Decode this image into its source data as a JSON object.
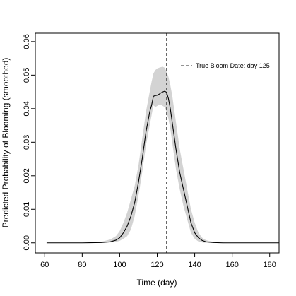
{
  "chart_data": {
    "type": "line",
    "title": "",
    "xlabel": "Time (day)",
    "ylabel": "Predicted Probability of Blooming (smoothed)",
    "xlim": [
      55,
      185
    ],
    "ylim": [
      -0.003,
      0.0625
    ],
    "xticks": [
      60,
      80,
      100,
      120,
      140,
      160,
      180
    ],
    "yticks": [
      0.0,
      0.01,
      0.02,
      0.03,
      0.04,
      0.05,
      0.06
    ],
    "ytick_labels": [
      "0.00",
      "0.01",
      "0.02",
      "0.03",
      "0.04",
      "0.05",
      "0.06"
    ],
    "grid": false,
    "legend_position": "top-right",
    "series": [
      {
        "x": [
          61,
          80,
          90,
          95,
          98,
          100,
          102,
          104,
          106,
          108,
          110,
          112,
          114,
          116,
          117,
          118,
          119,
          120,
          121,
          122,
          123,
          124,
          125,
          126,
          127,
          128,
          130,
          132,
          134,
          136,
          138,
          140,
          142,
          144,
          146,
          150,
          155,
          160,
          170,
          185
        ],
        "values": [
          0,
          0,
          0.0001,
          0.0003,
          0.0008,
          0.0015,
          0.003,
          0.005,
          0.008,
          0.012,
          0.018,
          0.025,
          0.033,
          0.039,
          0.041,
          0.0437,
          0.0439,
          0.044,
          0.0443,
          0.0447,
          0.045,
          0.0452,
          0.0449,
          0.043,
          0.04,
          0.036,
          0.028,
          0.021,
          0.016,
          0.011,
          0.006,
          0.003,
          0.0015,
          0.0007,
          0.0003,
          0.0001,
          0,
          0,
          0,
          0
        ],
        "lower": [
          0,
          0,
          0,
          0.0001,
          0.0003,
          0.0006,
          0.0012,
          0.002,
          0.004,
          0.008,
          0.014,
          0.021,
          0.029,
          0.035,
          0.038,
          0.041,
          0.0405,
          0.0408,
          0.0412,
          0.0412,
          0.0408,
          0.0405,
          0.039,
          0.037,
          0.034,
          0.03,
          0.022,
          0.016,
          0.011,
          0.007,
          0.003,
          0.0012,
          0.0004,
          0.0001,
          0,
          0,
          0,
          0,
          0,
          0
        ],
        "upper": [
          0,
          0,
          0.0003,
          0.001,
          0.002,
          0.0035,
          0.006,
          0.009,
          0.013,
          0.017,
          0.023,
          0.031,
          0.039,
          0.045,
          0.048,
          0.0505,
          0.0515,
          0.052,
          0.0522,
          0.0524,
          0.0525,
          0.0522,
          0.051,
          0.0495,
          0.047,
          0.044,
          0.036,
          0.028,
          0.022,
          0.016,
          0.01,
          0.006,
          0.003,
          0.0015,
          0.0008,
          0.0003,
          0.0001,
          0,
          0,
          0
        ]
      }
    ],
    "reference_lines": [
      {
        "x": 125,
        "style": "dashed",
        "label": "True Bloom Date: day 125"
      }
    ],
    "colors": {
      "band": "#d3d3d3",
      "line": "#000000",
      "reference": "#555555"
    }
  }
}
